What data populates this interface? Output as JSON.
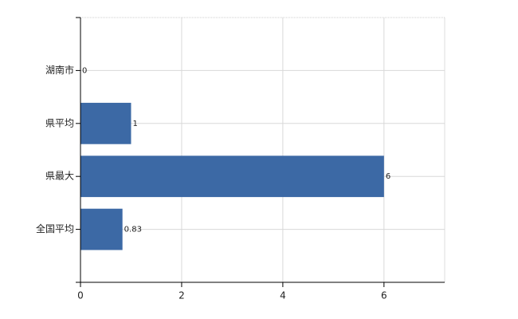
{
  "chart_data": {
    "type": "bar",
    "orientation": "horizontal",
    "categories": [
      "湖南市",
      "県平均",
      "県最大",
      "全国平均"
    ],
    "values": [
      0,
      1,
      6,
      0.83
    ],
    "color": "#3c69a5",
    "xlim": [
      0,
      7.2
    ],
    "xticks": [
      0,
      2,
      4,
      6
    ],
    "grid": true
  }
}
